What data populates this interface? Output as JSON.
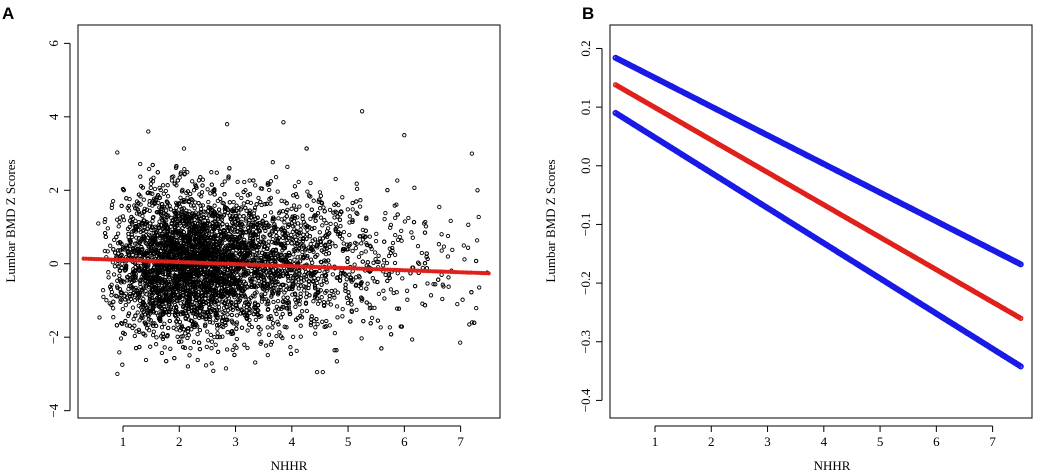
{
  "chart_data": [
    {
      "panel": "A",
      "type": "scatter",
      "xlabel": "NHHR",
      "ylabel": "Lumbar BMD Z Scores",
      "xlim": [
        0.2,
        7.7
      ],
      "ylim": [
        -4.2,
        6.5
      ],
      "x_ticks": [
        1,
        2,
        3,
        4,
        5,
        6,
        7
      ],
      "y_ticks": [
        -4,
        -2,
        0,
        2,
        4,
        6
      ],
      "y_tick_labels": [
        "−4",
        "−2",
        "0",
        "2",
        "4",
        "6"
      ],
      "grid": false,
      "legend": "none",
      "point_color": "#000000",
      "fit_color": "#e0201b",
      "scatter_summary": {
        "n_points": 5000,
        "x_range": [
          0.3,
          7.5
        ],
        "x_mode": 2.2,
        "y_center": 0.0,
        "y_sd": 0.95,
        "y_range": [
          -3.0,
          4.2
        ]
      },
      "outlier_points": [
        {
          "x": 5.25,
          "y": 4.15
        },
        {
          "x": 3.85,
          "y": 3.85
        },
        {
          "x": 2.85,
          "y": 3.8
        },
        {
          "x": 1.45,
          "y": 3.6
        },
        {
          "x": 6.0,
          "y": 3.5
        },
        {
          "x": 7.2,
          "y": 3.0
        },
        {
          "x": 7.3,
          "y": 2.0
        },
        {
          "x": 0.9,
          "y": -3.0
        },
        {
          "x": 4.45,
          "y": -2.95
        },
        {
          "x": 4.55,
          "y": -2.95
        }
      ],
      "fit_line": {
        "x": [
          0.3,
          7.5
        ],
        "y": [
          0.14,
          -0.26
        ]
      }
    },
    {
      "panel": "B",
      "type": "line",
      "xlabel": "NHHR",
      "ylabel": "Lumbar BMD Z Scores",
      "xlim": [
        0.2,
        7.7
      ],
      "ylim": [
        -0.43,
        0.24
      ],
      "x_ticks": [
        1,
        2,
        3,
        4,
        5,
        6,
        7
      ],
      "y_ticks": [
        -0.4,
        -0.3,
        -0.2,
        -0.1,
        0.0,
        0.1,
        0.2
      ],
      "y_tick_labels": [
        "−0.4",
        "−0.3",
        "−0.2",
        "−0.1",
        "0.0",
        "0.1",
        "0.2"
      ],
      "grid": false,
      "legend": "none",
      "series": [
        {
          "role": "fit",
          "color": "#e0201b",
          "x": [
            0.3,
            7.5
          ],
          "y": [
            0.138,
            -0.26
          ]
        },
        {
          "role": "upper-ci",
          "color": "#1a1ae6",
          "x": [
            0.3,
            7.5
          ],
          "y": [
            0.184,
            -0.168
          ]
        },
        {
          "role": "lower-ci",
          "color": "#1a1ae6",
          "x": [
            0.3,
            7.5
          ],
          "y": [
            0.09,
            -0.342
          ]
        }
      ]
    }
  ]
}
